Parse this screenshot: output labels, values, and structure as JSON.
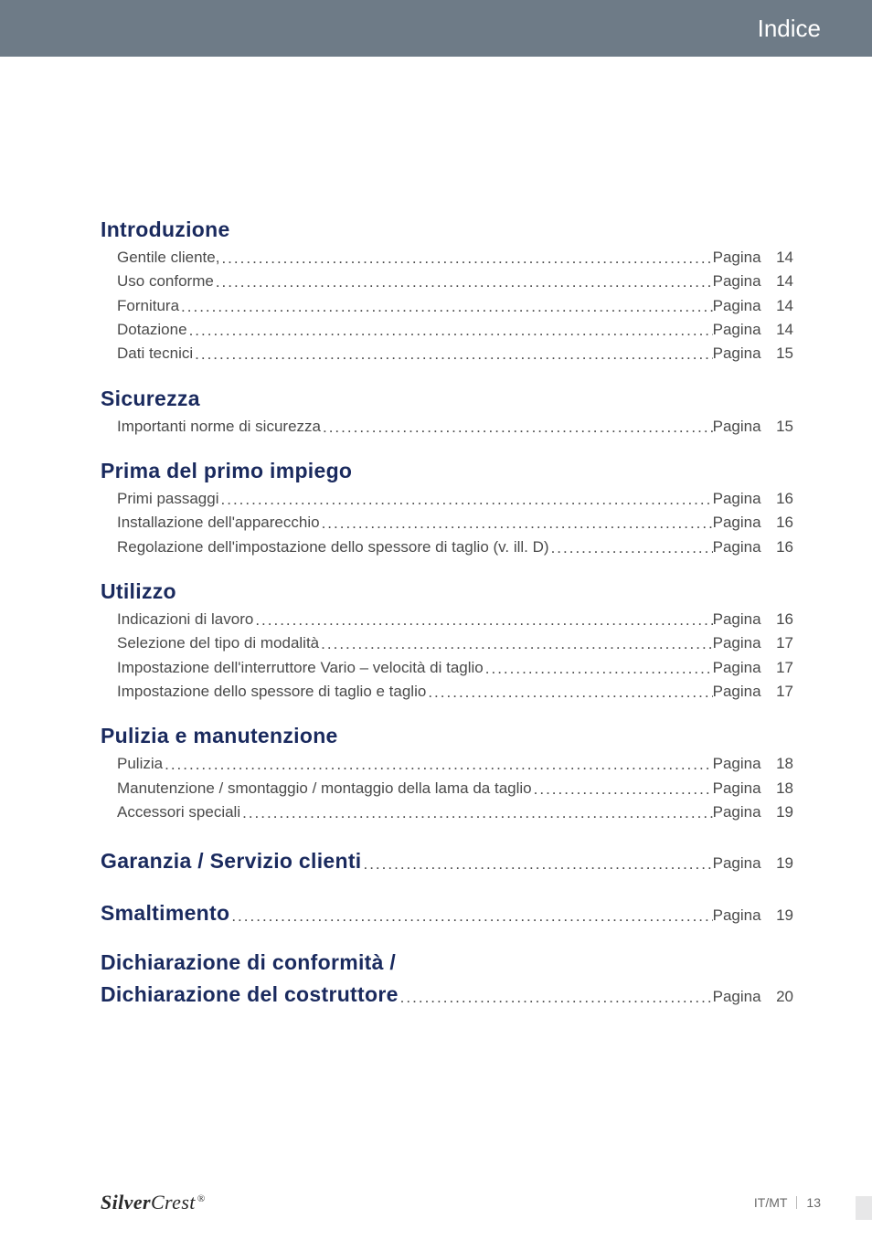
{
  "colors": {
    "heading_blue": "#1a2a5e",
    "header_bar": "#6e7b87",
    "header_text": "#ffffff",
    "page_text": "#4a4a4a",
    "footer_text": "#6a6a6a",
    "logo_color": "#2a2a2a",
    "edge_tab": "#e7e7e8",
    "background": "#ffffff"
  },
  "typography": {
    "heading_fontsize_pt": 17,
    "body_fontsize_pt": 13,
    "header_fontsize_pt": 20,
    "footer_fontsize_pt": 10,
    "font_family": "Futura / Century Gothic style sans-serif",
    "logo_font_family": "Times-like italic serif"
  },
  "header": {
    "title": "Indice"
  },
  "page_word": "Pagina",
  "sections": [
    {
      "heading": "Introduzione",
      "heading_has_page": false,
      "items": [
        {
          "label": "Gentile cliente,",
          "page": 14
        },
        {
          "label": "Uso conforme",
          "page": 14
        },
        {
          "label": "Fornitura",
          "page": 14
        },
        {
          "label": "Dotazione",
          "page": 14
        },
        {
          "label": "Dati tecnici",
          "page": 15
        }
      ]
    },
    {
      "heading": "Sicurezza",
      "heading_has_page": false,
      "items": [
        {
          "label": "Importanti norme di sicurezza",
          "page": 15
        }
      ]
    },
    {
      "heading": "Prima del primo impiego",
      "heading_has_page": false,
      "items": [
        {
          "label": "Primi passaggi",
          "page": 16
        },
        {
          "label": "Installazione dell'apparecchio",
          "page": 16
        },
        {
          "label": "Regolazione dell'impostazione dello spessore di taglio (v. ill. D)",
          "page": 16
        }
      ]
    },
    {
      "heading": "Utilizzo",
      "heading_has_page": false,
      "items": [
        {
          "label": "Indicazioni di lavoro",
          "page": 16
        },
        {
          "label": "Selezione del tipo di modalità",
          "page": 17
        },
        {
          "label": "Impostazione dell'interruttore Vario – velocità di taglio",
          "page": 17
        },
        {
          "label": "Impostazione dello spessore di taglio e taglio",
          "page": 17
        }
      ]
    },
    {
      "heading": "Pulizia e manutenzione",
      "heading_has_page": false,
      "items": [
        {
          "label": "Pulizia",
          "page": 18
        },
        {
          "label": "Manutenzione / smontaggio / montaggio della lama da taglio",
          "page": 18
        },
        {
          "label": "Accessori speciali",
          "page": 19
        }
      ]
    },
    {
      "heading": "Garanzia / Servizio clienti",
      "heading_has_page": true,
      "page": 19,
      "items": []
    },
    {
      "heading": "Smaltimento",
      "heading_has_page": true,
      "page": 19,
      "items": []
    },
    {
      "heading_lines": [
        "Dichiarazione di conformità /",
        "Dichiarazione del costruttore"
      ],
      "heading_has_page": true,
      "page": 20,
      "items": []
    }
  ],
  "footer": {
    "logo_bold": "Silver",
    "logo_thin": "Crest",
    "region": "IT/MT",
    "page_number": "13"
  }
}
